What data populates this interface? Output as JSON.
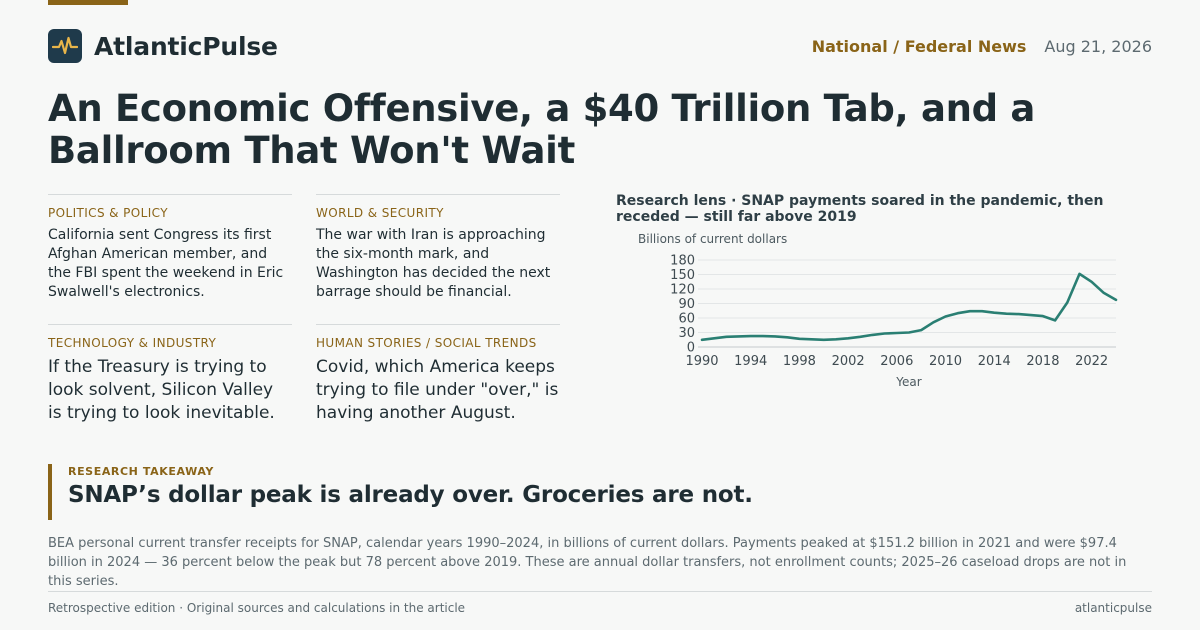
{
  "brand": {
    "name": "AtlanticPulse",
    "logo_icon": "pulse-icon",
    "accent": "#8a6418",
    "logo_bg": "#1f3a4b"
  },
  "header": {
    "section": "National / Federal News",
    "date": "Aug 21, 2026"
  },
  "headline": "An Economic Offensive, a $40 Trillion Tab, and a Ballroom That Won't Wait",
  "stories": [
    {
      "kicker": "Politics & Policy",
      "dek": "California sent Congress its first Afghan American member, and the FBI spent the weekend in Eric Swalwell's electronics."
    },
    {
      "kicker": "World & Security",
      "dek": "The war with Iran is approaching the six-month mark, and Washington has decided the next barrage should be financial."
    },
    {
      "kicker": "Technology & Industry",
      "dek": "If the Treasury is trying to look solvent, Silicon Valley is trying to look inevitable."
    },
    {
      "kicker": "Human Stories / Social Trends",
      "dek": "Covid, which America keeps trying to file under \"over,\" is having another August."
    }
  ],
  "chart_data": {
    "type": "line",
    "title": "Research lens · SNAP payments soared in the pandemic, then receded — still far above 2019",
    "ylabel": "Billions of current dollars",
    "xlabel": "Year",
    "ylim": [
      0,
      180
    ],
    "yticks": [
      0,
      30,
      60,
      90,
      120,
      150,
      180
    ],
    "xlim": [
      1990,
      2024
    ],
    "xticks": [
      1990,
      1994,
      1998,
      2002,
      2006,
      2010,
      2014,
      2018,
      2022
    ],
    "grid": true,
    "color": "#2a7f73",
    "x": [
      1990,
      1991,
      1992,
      1993,
      1994,
      1995,
      1996,
      1997,
      1998,
      1999,
      2000,
      2001,
      2002,
      2003,
      2004,
      2005,
      2006,
      2007,
      2008,
      2009,
      2010,
      2011,
      2012,
      2013,
      2014,
      2015,
      2016,
      2017,
      2018,
      2019,
      2020,
      2021,
      2022,
      2023,
      2024
    ],
    "y": [
      15,
      18,
      21,
      22,
      22.5,
      22.5,
      22,
      20,
      17,
      16,
      15,
      16,
      18,
      21,
      25,
      28,
      29,
      30,
      35,
      51,
      63,
      70,
      74,
      74,
      71,
      69,
      68,
      66,
      64,
      55,
      92,
      151.2,
      135,
      112,
      97.4
    ]
  },
  "takeaway": {
    "kicker": "Research takeaway",
    "text": "SNAP’s dollar peak is already over. Groceries are not."
  },
  "note": "BEA personal current transfer receipts for SNAP, calendar years 1990–2024, in billions of current dollars. Payments peaked at $151.2 billion in 2021 and were $97.4 billion in 2024 — 36 percent below the peak but 78 percent above 2019. These are annual dollar transfers, not enrollment counts; 2025–26 caseload drops are not in this series.",
  "footer": {
    "left": "Retrospective edition · Original sources and calculations in the article",
    "right": "atlanticpulse"
  }
}
